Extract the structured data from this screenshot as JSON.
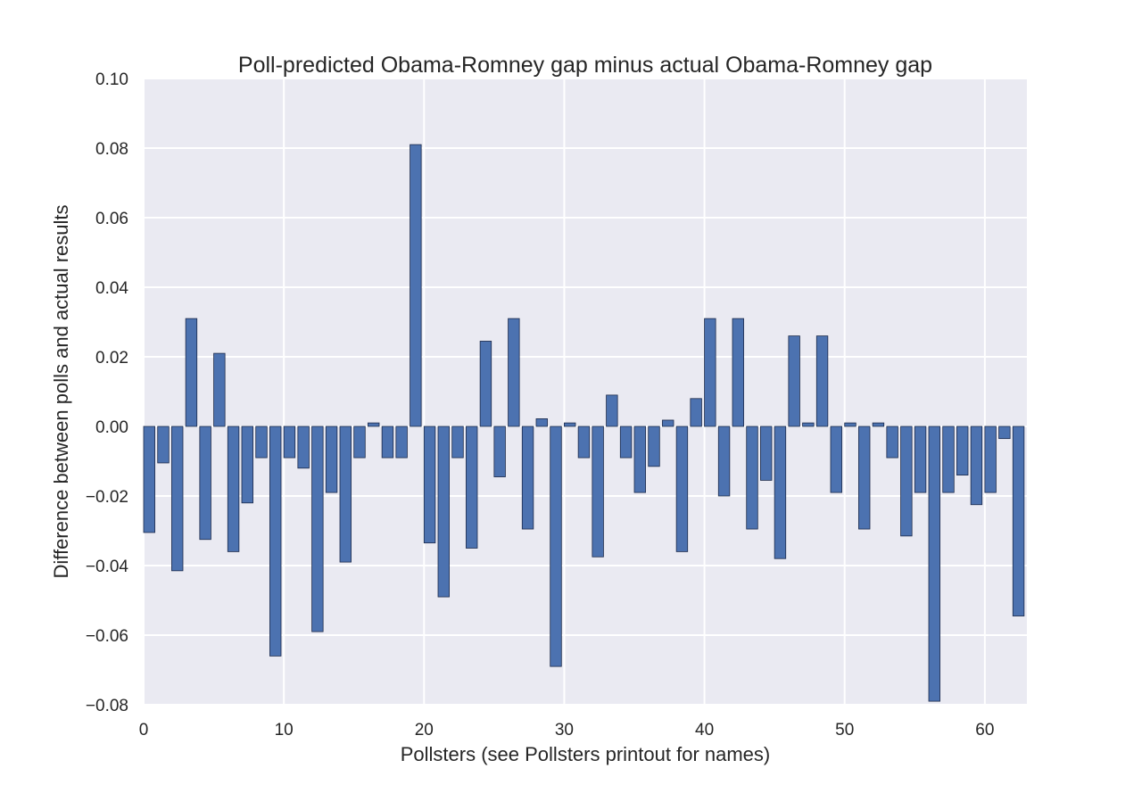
{
  "chart_data": {
    "type": "bar",
    "title": "Poll-predicted Obama-Romney gap minus actual Obama-Romney gap",
    "xlabel": "Pollsters (see Pollsters printout for names)",
    "ylabel": "Difference between polls and actual results",
    "xlim": [
      0,
      63
    ],
    "ylim": [
      -0.08,
      0.1
    ],
    "grid": true,
    "x_ticks": [
      0,
      10,
      20,
      30,
      40,
      50,
      60
    ],
    "x_tick_labels": [
      "0",
      "10",
      "20",
      "30",
      "40",
      "50",
      "60"
    ],
    "y_ticks": [
      0.1,
      0.08,
      0.06,
      0.04,
      0.02,
      0.0,
      -0.02,
      -0.04,
      -0.06,
      -0.08
    ],
    "y_tick_labels": [
      "0.10",
      "0.08",
      "0.06",
      "0.04",
      "0.02",
      "0.00",
      "−0.02",
      "−0.04",
      "−0.06",
      "−0.08"
    ],
    "categories": [
      0,
      1,
      2,
      3,
      4,
      5,
      6,
      7,
      8,
      9,
      10,
      11,
      12,
      13,
      14,
      15,
      16,
      17,
      18,
      19,
      20,
      21,
      22,
      23,
      24,
      25,
      26,
      27,
      28,
      29,
      30,
      31,
      32,
      33,
      34,
      35,
      36,
      37,
      38,
      39,
      40,
      41,
      42,
      43,
      44,
      45,
      46,
      47,
      48,
      49,
      50,
      51,
      52,
      53,
      54,
      55,
      56,
      57,
      58,
      59,
      60,
      61,
      62
    ],
    "values": [
      -0.0305,
      -0.0105,
      -0.0415,
      0.031,
      -0.0325,
      0.021,
      -0.036,
      -0.022,
      -0.009,
      -0.066,
      -0.009,
      -0.012,
      -0.059,
      -0.019,
      -0.039,
      -0.009,
      0.001,
      -0.009,
      -0.009,
      0.081,
      -0.0335,
      -0.049,
      -0.009,
      -0.035,
      0.0245,
      -0.0145,
      0.031,
      -0.0295,
      0.0022,
      -0.069,
      0.001,
      -0.009,
      -0.0375,
      0.009,
      -0.009,
      -0.019,
      -0.0115,
      0.0018,
      -0.036,
      0.008,
      0.031,
      -0.02,
      0.031,
      -0.0295,
      -0.0155,
      -0.038,
      0.026,
      0.001,
      0.026,
      -0.019,
      0.001,
      -0.0295,
      0.001,
      -0.009,
      -0.0315,
      -0.019,
      -0.079,
      -0.019,
      -0.014,
      -0.0225,
      -0.019,
      -0.0035,
      -0.0545
    ],
    "bar_color": "#4c72b0",
    "background_color": "#eaeaf2"
  }
}
